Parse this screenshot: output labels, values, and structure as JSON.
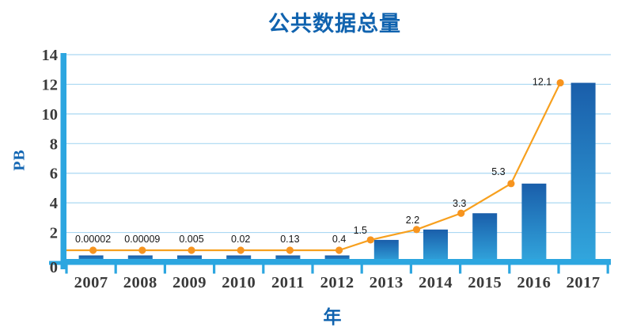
{
  "title": "公共数据总量",
  "colors": {
    "title_blue": "#1063AF",
    "axis_blue": "#2CA6E0",
    "grid_blue": "#AAD8F2",
    "bar_gradient_top": "#1A5EAA",
    "bar_gradient_bottom": "#32A7DE",
    "line_orange": "#F7A01E",
    "marker_orange": "#F7941E",
    "tick_text": "#3A3A3A",
    "data_label_text": "#141414"
  },
  "chart_data": {
    "type": "bar",
    "subtype": "bar-with-line-overlay",
    "title": "公共数据总量",
    "xlabel": "年",
    "ylabel": "PB",
    "categories": [
      "2007",
      "2008",
      "2009",
      "2010",
      "2011",
      "2012",
      "2013",
      "2014",
      "2015",
      "2016",
      "2017"
    ],
    "series": [
      {
        "name": "bars",
        "type": "bar",
        "values": [
          2e-05,
          9e-05,
          0.005,
          0.02,
          0.13,
          0.4,
          1.5,
          2.2,
          3.3,
          5.3,
          12.1
        ]
      },
      {
        "name": "line",
        "type": "line",
        "values": [
          2e-05,
          9e-05,
          0.005,
          0.02,
          0.13,
          0.4,
          1.5,
          2.2,
          3.3,
          5.3,
          12.1
        ],
        "point_labels": [
          "0.00002",
          "0.00009",
          "0.005",
          "0.02",
          "0.13",
          "0.4",
          "1.5",
          "2.2",
          "3.3",
          "5.3",
          "12.1"
        ]
      }
    ],
    "ylim": [
      0,
      14
    ],
    "yticks": [
      0,
      2,
      4,
      6,
      8,
      10,
      12,
      14
    ],
    "grid": true,
    "legend": "none"
  }
}
